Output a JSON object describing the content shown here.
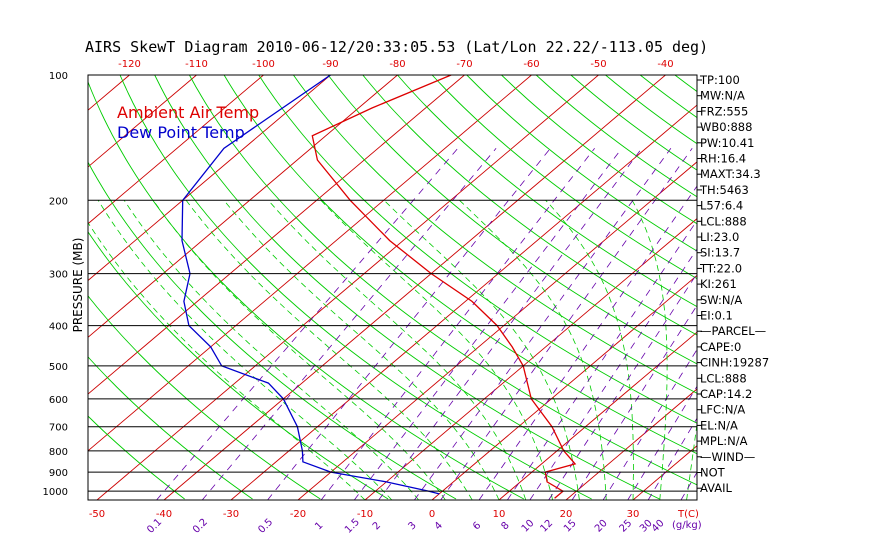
{
  "title": "AIRS SkewT Diagram 2010-06-12/20:33:05.53 (Lat/Lon 22.22/-113.05 deg)",
  "colors": {
    "temp": "#dd0000",
    "dewpoint": "#0000cc",
    "isotherm": "#cc0000",
    "dry_adiabat": "#00cc00",
    "moist_adiabat": "#00cc00",
    "mixing_ratio": "#6600aa",
    "isobar": "#000000"
  },
  "chart_data": {
    "type": "line",
    "title": "AIRS SkewT Diagram 2010-06-12/20:33:05.53 (Lat/Lon 22.22/-113.05 deg)",
    "ylabel": "PRESSURE (MB)",
    "xlabel": "T(C)",
    "y_scale": "log",
    "ylim": [
      1050,
      100
    ],
    "isobars": [
      100,
      200,
      300,
      400,
      500,
      600,
      700,
      800,
      900,
      1000
    ],
    "pressure_tick_labels": [
      "100",
      "200",
      "300",
      "400",
      "500",
      "600",
      "700",
      "800",
      "900",
      "1000"
    ],
    "bottom_temp_ticks": [
      "-50",
      "-40",
      "-30",
      "-20",
      "-10",
      "0",
      "10",
      "20",
      "30"
    ],
    "top_temp_ticks": [
      "-120",
      "-110",
      "-100",
      "-90",
      "-80",
      "-70",
      "-60",
      "-50",
      "-40"
    ],
    "mixing_ratio_labels": [
      "0.1",
      "0.2",
      "0.5",
      "1",
      "1.5",
      "2",
      "3",
      "4",
      "6",
      "8",
      "10",
      "12",
      "15",
      "20",
      "25",
      "30",
      "40"
    ],
    "mixing_ratio_unit": "(g/kg)",
    "legend": [
      "Ambient Air Temp",
      "Dew Point Temp"
    ],
    "series": [
      {
        "name": "Ambient Air Temp",
        "points": [
          [
            100,
            -72
          ],
          [
            120,
            -78
          ],
          [
            140,
            -82
          ],
          [
            160,
            -77
          ],
          [
            200,
            -65
          ],
          [
            250,
            -52
          ],
          [
            300,
            -40
          ],
          [
            350,
            -29
          ],
          [
            400,
            -21
          ],
          [
            450,
            -15
          ],
          [
            500,
            -10
          ],
          [
            600,
            -3
          ],
          [
            700,
            5
          ],
          [
            800,
            11
          ],
          [
            860,
            15
          ],
          [
            900,
            12
          ],
          [
            950,
            14
          ],
          [
            1000,
            18
          ],
          [
            1040,
            18
          ]
        ]
      },
      {
        "name": "Dew Point Temp",
        "points": [
          [
            100,
            -90
          ],
          [
            150,
            -93
          ],
          [
            200,
            -90
          ],
          [
            250,
            -83
          ],
          [
            300,
            -76
          ],
          [
            350,
            -72
          ],
          [
            400,
            -67
          ],
          [
            450,
            -60
          ],
          [
            500,
            -55
          ],
          [
            550,
            -45
          ],
          [
            600,
            -40
          ],
          [
            700,
            -33
          ],
          [
            800,
            -28
          ],
          [
            850,
            -26
          ],
          [
            900,
            -20
          ],
          [
            950,
            -10
          ],
          [
            1000,
            -2
          ],
          [
            1015,
            0
          ]
        ]
      }
    ],
    "indices": [
      "TP:100",
      "MW:N/A",
      "FRZ:555",
      "WB0:888",
      "PW:10.41",
      "RH:16.4",
      "MAXT:34.3",
      "TH:5463",
      "L57:6.4",
      "LCL:888",
      "LI:23.0",
      "SI:13.7",
      "TT:22.0",
      "KI:261",
      "SW:N/A",
      "EI:0.1",
      "—PARCEL—",
      "CAPE:0",
      "CINH:19287",
      "LCL:888",
      "CAP:14.2",
      "LFC:N/A",
      "EL:N/A",
      "MPL:N/A",
      "—WIND—",
      "NOT",
      "AVAIL"
    ]
  }
}
